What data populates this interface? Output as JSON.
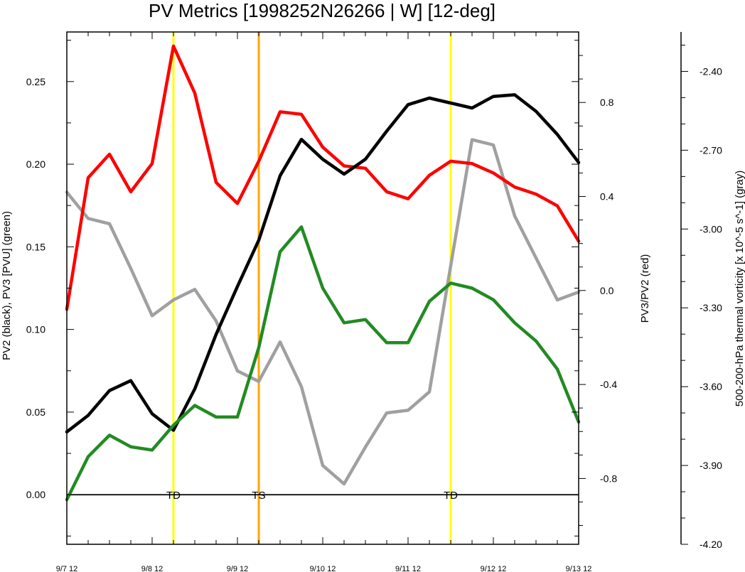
{
  "chart_data": {
    "type": "line",
    "title": "PV Metrics [1998252N26266 | W] [12-deg]",
    "left_axis": {
      "label": "PV2 (black), PV3 [PVU] (green)",
      "ylim": [
        -0.03,
        0.28
      ],
      "ticks": [
        0.0,
        0.05,
        0.1,
        0.15,
        0.2,
        0.25
      ],
      "tick_labels": [
        "0.00",
        "0.05",
        "0.10",
        "0.15",
        "0.20",
        "0.25"
      ]
    },
    "right_axis_1": {
      "label": "PV3/PV2 (red)",
      "ylim": [
        -1.08,
        1.1
      ],
      "ticks": [
        -0.8,
        -0.4,
        0.0,
        0.4,
        0.8
      ],
      "tick_labels": [
        "-0.8",
        "-0.4",
        "0.0",
        "0.4",
        "0.8"
      ]
    },
    "right_axis_2": {
      "label": "500-200-hPa thermal vorticity [x 10^-5 s^-1] (gray)",
      "ylim": [
        -4.2,
        -2.25
      ],
      "ticks": [
        -4.2,
        -3.9,
        -3.6,
        -3.3,
        -3.0,
        -2.7,
        -2.4
      ],
      "tick_labels": [
        "-4.20",
        "-3.90",
        "-3.60",
        "-3.30",
        "-3.00",
        "-2.70",
        "-2.40"
      ]
    },
    "x_axis": {
      "xlim": [
        0,
        24
      ],
      "ticks": [
        0,
        4,
        8,
        12,
        16,
        20,
        24
      ],
      "tick_labels": [
        "9/7 12",
        "9/8 12",
        "9/9 12",
        "9/10 12",
        "9/11 12",
        "9/12 12",
        "9/13 12"
      ]
    },
    "x": [
      0,
      1,
      2,
      3,
      4,
      5,
      6,
      7,
      8,
      9,
      10,
      11,
      12,
      13,
      14,
      15,
      16,
      17,
      18,
      19,
      20,
      21,
      22,
      23,
      24
    ],
    "series": [
      {
        "name": "PV2",
        "axis": "left",
        "color": "#000000",
        "values": [
          0.038,
          0.048,
          0.063,
          0.069,
          0.049,
          0.039,
          0.064,
          0.097,
          0.126,
          0.154,
          0.193,
          0.215,
          0.203,
          0.194,
          0.203,
          0.22,
          0.236,
          0.24,
          0.237,
          0.234,
          0.241,
          0.242,
          0.232,
          0.218,
          0.201
        ]
      },
      {
        "name": "PV3",
        "axis": "left",
        "color": "#228b22",
        "values": [
          -0.003,
          0.023,
          0.036,
          0.029,
          0.027,
          0.042,
          0.054,
          0.047,
          0.047,
          0.089,
          0.147,
          0.162,
          0.125,
          0.104,
          0.106,
          0.092,
          0.092,
          0.117,
          0.128,
          0.125,
          0.118,
          0.104,
          0.093,
          0.076,
          0.044
        ]
      },
      {
        "name": "PV3/PV2",
        "axis": "right_1",
        "color": "#ff0000",
        "values": [
          -0.08,
          0.48,
          0.58,
          0.42,
          0.54,
          1.04,
          0.84,
          0.46,
          0.37,
          0.55,
          0.76,
          0.75,
          0.61,
          0.53,
          0.52,
          0.42,
          0.39,
          0.49,
          0.55,
          0.54,
          0.5,
          0.44,
          0.41,
          0.36,
          0.21
        ]
      },
      {
        "name": "thermal vorticity",
        "axis": "right_2",
        "color": "#a0a0a0",
        "values": [
          -2.86,
          -2.96,
          -2.98,
          -3.15,
          -3.33,
          -3.27,
          -3.23,
          -3.35,
          -3.54,
          -3.58,
          -3.43,
          -3.6,
          -3.9,
          -3.97,
          -3.83,
          -3.7,
          -3.69,
          -3.62,
          -3.14,
          -2.66,
          -2.68,
          -2.95,
          -3.11,
          -3.27,
          -3.24
        ]
      }
    ],
    "vertical_lines": [
      {
        "x": 5.0,
        "color": "#ffff00",
        "label": "TD"
      },
      {
        "x": 9.0,
        "color": "#ffa500",
        "label": "TS"
      },
      {
        "x": 18.0,
        "color": "#ffff00",
        "label": "TD"
      }
    ],
    "zero_line": 0.0
  }
}
